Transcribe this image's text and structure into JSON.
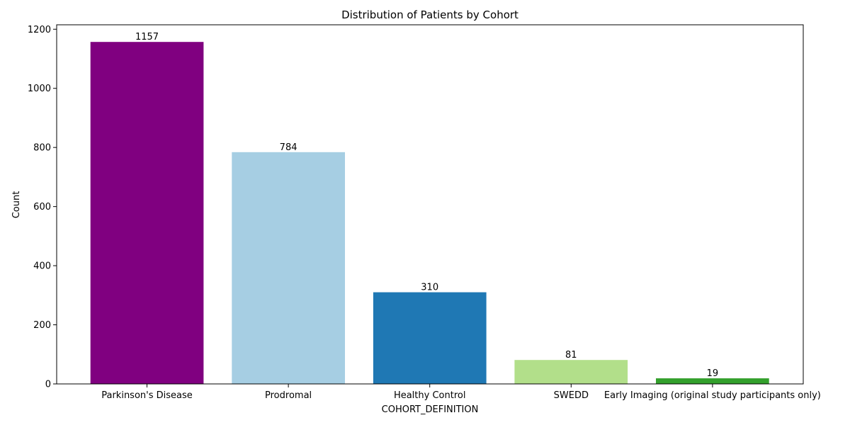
{
  "chart_data": {
    "type": "bar",
    "title": "Distribution of Patients by Cohort",
    "xlabel": "COHORT_DEFINITION",
    "ylabel": "Count",
    "categories": [
      "Parkinson's Disease",
      "Prodromal",
      "Healthy Control",
      "SWEDD",
      "Early Imaging (original study participants only)"
    ],
    "values": [
      1157,
      784,
      310,
      81,
      19
    ],
    "colors": [
      "#800080",
      "#a6cee3",
      "#1f78b4",
      "#b2df8a",
      "#33a02c"
    ],
    "ylim": [
      0,
      1215
    ],
    "yticks": [
      0,
      200,
      400,
      600,
      800,
      1000,
      1200
    ],
    "grid": false
  }
}
